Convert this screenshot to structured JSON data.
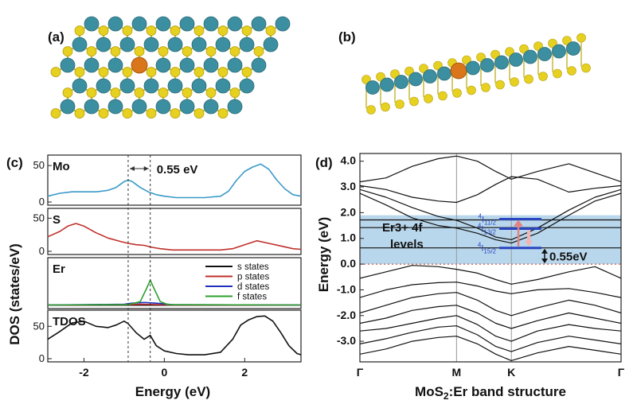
{
  "panels": {
    "a": "(a)",
    "b": "(b)",
    "c": "(c)",
    "d": "(d)"
  },
  "colors": {
    "mo": "#3b8fa0",
    "s": "#e6d020",
    "er": "#d9751a",
    "dos_mo": "#3a9ac8",
    "dos_s": "#c0302a",
    "band_region": "#b9d7ec",
    "level_blue": "#2a45c0",
    "arrow_up": "#e58080"
  },
  "chart_data": [
    {
      "type": "line",
      "title": "",
      "xlabel": "Energy (eV)",
      "ylabel": "DOS (states/eV)",
      "xlim": [
        -2.9,
        3.4
      ],
      "xticks": [
        -2,
        0,
        2
      ],
      "vlines": [
        -0.9,
        -0.35
      ],
      "gap_annotation": "0.55 eV",
      "legend": [
        "s states",
        "p states",
        "d states",
        "f states"
      ],
      "legend_colors": [
        "#111111",
        "#c0302a",
        "#2030c0",
        "#2ca02c"
      ],
      "subplots": [
        {
          "name": "Mo",
          "ylim": [
            0,
            60
          ],
          "yticks": [
            0,
            50
          ],
          "color": "#3a9ac8",
          "x": [
            -2.9,
            -2.6,
            -2.3,
            -2.0,
            -1.7,
            -1.4,
            -1.2,
            -1.0,
            -0.9,
            -0.8,
            -0.6,
            -0.4,
            -0.2,
            0.0,
            0.3,
            0.6,
            1.0,
            1.4,
            1.6,
            1.8,
            2.0,
            2.2,
            2.4,
            2.6,
            2.8,
            3.0,
            3.2,
            3.4
          ],
          "y": [
            8,
            12,
            14,
            14,
            14,
            16,
            20,
            28,
            30,
            28,
            20,
            14,
            10,
            8,
            6,
            6,
            6,
            8,
            15,
            30,
            42,
            48,
            52,
            45,
            30,
            18,
            10,
            8
          ]
        },
        {
          "name": "S",
          "ylim": [
            0,
            60
          ],
          "yticks": [
            0,
            50
          ],
          "color": "#c0302a",
          "x": [
            -2.9,
            -2.6,
            -2.4,
            -2.2,
            -2.0,
            -1.7,
            -1.4,
            -1.1,
            -0.9,
            -0.7,
            -0.5,
            -0.3,
            -0.1,
            0.2,
            0.6,
            1.0,
            1.4,
            1.7,
            2.0,
            2.3,
            2.6,
            2.9,
            3.2,
            3.4
          ],
          "y": [
            22,
            30,
            38,
            42,
            38,
            28,
            20,
            15,
            12,
            10,
            9,
            6,
            4,
            2,
            2,
            2,
            2,
            4,
            10,
            16,
            12,
            8,
            4,
            3
          ]
        },
        {
          "name": "Er",
          "ylim": [
            0,
            60
          ],
          "yticks": [],
          "series": [
            {
              "name": "s states",
              "color": "#111111",
              "x": [
                -2.9,
                3.4
              ],
              "y": [
                0.3,
                0.3
              ]
            },
            {
              "name": "p states",
              "color": "#c0302a",
              "x": [
                -2.9,
                -1.0,
                -0.6,
                -0.2,
                0.2,
                3.4
              ],
              "y": [
                0.5,
                0.8,
                1.5,
                1.2,
                0.6,
                0.3
              ]
            },
            {
              "name": "d states",
              "color": "#2030c0",
              "x": [
                -2.9,
                -1.0,
                -0.8,
                -0.5,
                -0.2,
                0.2,
                3.4
              ],
              "y": [
                0.5,
                1.5,
                3,
                4,
                3,
                1,
                0.5
              ]
            },
            {
              "name": "f states",
              "color": "#2ca02c",
              "x": [
                -2.9,
                -0.9,
                -0.6,
                -0.45,
                -0.35,
                -0.25,
                -0.1,
                0.1,
                3.4
              ],
              "y": [
                0.5,
                1,
                5,
                22,
                34,
                22,
                5,
                1,
                0.5
              ]
            }
          ]
        },
        {
          "name": "TDOS",
          "ylim": [
            0,
            70
          ],
          "yticks": [
            0,
            50
          ],
          "color": "#111111",
          "x": [
            -2.9,
            -2.6,
            -2.3,
            -2.0,
            -1.7,
            -1.4,
            -1.2,
            -1.0,
            -0.9,
            -0.7,
            -0.5,
            -0.35,
            -0.2,
            0.0,
            0.3,
            0.6,
            1.0,
            1.4,
            1.7,
            1.9,
            2.1,
            2.3,
            2.5,
            2.7,
            2.9,
            3.1,
            3.3,
            3.4
          ],
          "y": [
            30,
            42,
            55,
            58,
            50,
            48,
            52,
            58,
            54,
            40,
            30,
            36,
            20,
            12,
            8,
            6,
            6,
            10,
            30,
            52,
            60,
            65,
            66,
            58,
            40,
            20,
            8,
            6
          ]
        }
      ]
    },
    {
      "type": "line",
      "title": "MoS2:Er band structure",
      "title_main": "MoS",
      "title_sub": "2",
      "title_rest": ":Er band structure",
      "xlabel": "",
      "ylabel": "Energy (eV)",
      "ylim": [
        -3.8,
        4.3
      ],
      "yticks": [
        4.0,
        3.0,
        2.0,
        1.0,
        0.0,
        -1.0,
        -2.0,
        -3.0
      ],
      "ytick_labels": [
        "4.0",
        "3.0",
        "2.0",
        "1.0",
        "0.0",
        "-1.0",
        "-2.0",
        "-3.0"
      ],
      "kpoints": [
        "Γ",
        "M",
        "K",
        "Γ"
      ],
      "kpos": [
        0,
        0.37,
        0.58,
        1.0
      ],
      "shaded_region": [
        0.0,
        1.9
      ],
      "inset_label": [
        "Er3+ 4f",
        "levels"
      ],
      "levels": [
        {
          "label": "4I11/2",
          "sup": "4",
          "main": "I",
          "sub": "11/2",
          "energy": 1.75
        },
        {
          "label": "4I13/2",
          "sup": "4",
          "main": "I",
          "sub": "13/2",
          "energy": 1.38
        },
        {
          "label": "4I15/2",
          "sup": "4",
          "main": "I",
          "sub": "15/2",
          "energy": 0.63
        }
      ],
      "gap_annotation": "0.55eV",
      "bands": [
        {
          "k": [
            0,
            0.1,
            0.2,
            0.3,
            0.37,
            0.45,
            0.52,
            0.58,
            0.68,
            0.8,
            0.9,
            1.0
          ],
          "e": [
            3.2,
            3.35,
            3.8,
            4.1,
            4.2,
            4.0,
            3.6,
            3.3,
            3.6,
            3.9,
            3.55,
            3.2
          ]
        },
        {
          "k": [
            0,
            0.1,
            0.2,
            0.3,
            0.37,
            0.45,
            0.52,
            0.58,
            0.68,
            0.8,
            0.9,
            1.0
          ],
          "e": [
            3.05,
            2.9,
            2.6,
            2.45,
            2.4,
            2.7,
            3.1,
            3.4,
            3.3,
            2.8,
            2.95,
            3.05
          ]
        },
        {
          "k": [
            0,
            0.1,
            0.2,
            0.3,
            0.37,
            0.45,
            0.52,
            0.58,
            0.68,
            0.8,
            0.9,
            1.0
          ],
          "e": [
            2.9,
            2.6,
            2.2,
            1.85,
            1.7,
            1.4,
            1.05,
            0.95,
            1.4,
            2.1,
            2.6,
            2.9
          ]
        },
        {
          "k": [
            0,
            0.1,
            0.2,
            0.3,
            0.37,
            0.45,
            0.52,
            0.58,
            0.68,
            0.8,
            0.9,
            1.0
          ],
          "e": [
            2.75,
            2.3,
            1.8,
            1.5,
            1.4,
            1.2,
            0.95,
            0.82,
            1.2,
            1.9,
            2.45,
            2.75
          ]
        },
        {
          "k": [
            0,
            0.58,
            1.0
          ],
          "e": [
            1.72,
            1.72,
            1.72
          ]
        },
        {
          "k": [
            0,
            0.58,
            1.0
          ],
          "e": [
            1.42,
            1.42,
            1.42
          ]
        },
        {
          "k": [
            0,
            0.58,
            1.0
          ],
          "e": [
            0.63,
            0.63,
            0.63
          ]
        },
        {
          "k": [
            0,
            0.1,
            0.2,
            0.3,
            0.37,
            0.45,
            0.52,
            0.58,
            0.68,
            0.8,
            0.9,
            1.0
          ],
          "e": [
            -0.55,
            -0.3,
            -0.05,
            -0.1,
            -0.2,
            -0.35,
            -0.6,
            -0.78,
            -0.6,
            -0.3,
            -0.1,
            -0.55
          ]
        },
        {
          "k": [
            0,
            0.1,
            0.2,
            0.3,
            0.37,
            0.45,
            0.52,
            0.58,
            0.68,
            0.8,
            0.9,
            1.0
          ],
          "e": [
            -1.3,
            -1.0,
            -0.8,
            -0.72,
            -0.7,
            -0.85,
            -1.05,
            -1.15,
            -1.0,
            -0.95,
            -1.1,
            -1.3
          ]
        },
        {
          "k": [
            0,
            0.1,
            0.2,
            0.3,
            0.37,
            0.45,
            0.52,
            0.58,
            0.68,
            0.8,
            0.9,
            1.0
          ],
          "e": [
            -1.9,
            -1.6,
            -1.3,
            -1.15,
            -1.1,
            -1.4,
            -1.8,
            -2.0,
            -1.7,
            -1.4,
            -1.6,
            -1.9
          ]
        },
        {
          "k": [
            0,
            0.1,
            0.2,
            0.3,
            0.37,
            0.45,
            0.52,
            0.58,
            0.68,
            0.8,
            0.9,
            1.0
          ],
          "e": [
            -2.3,
            -2.1,
            -1.8,
            -1.65,
            -1.6,
            -1.9,
            -2.3,
            -2.5,
            -2.2,
            -1.9,
            -2.1,
            -2.3
          ]
        },
        {
          "k": [
            0,
            0.1,
            0.2,
            0.3,
            0.37,
            0.45,
            0.52,
            0.58,
            0.68,
            0.8,
            0.9,
            1.0
          ],
          "e": [
            -2.6,
            -2.5,
            -2.3,
            -2.1,
            -2.0,
            -2.35,
            -2.8,
            -3.0,
            -2.6,
            -2.35,
            -2.5,
            -2.6
          ]
        },
        {
          "k": [
            0,
            0.1,
            0.2,
            0.3,
            0.37,
            0.45,
            0.52,
            0.58,
            0.68,
            0.8,
            0.9,
            1.0
          ],
          "e": [
            -3.1,
            -2.9,
            -2.65,
            -2.45,
            -2.4,
            -2.75,
            -3.2,
            -3.4,
            -3.05,
            -2.8,
            -2.95,
            -3.1
          ]
        },
        {
          "k": [
            0,
            0.1,
            0.2,
            0.3,
            0.37,
            0.45,
            0.52,
            0.58,
            0.68,
            0.8,
            0.9,
            1.0
          ],
          "e": [
            -3.5,
            -3.3,
            -3.0,
            -2.85,
            -2.8,
            -3.1,
            -3.5,
            -3.75,
            -3.45,
            -3.2,
            -3.35,
            -3.5
          ]
        }
      ]
    }
  ]
}
